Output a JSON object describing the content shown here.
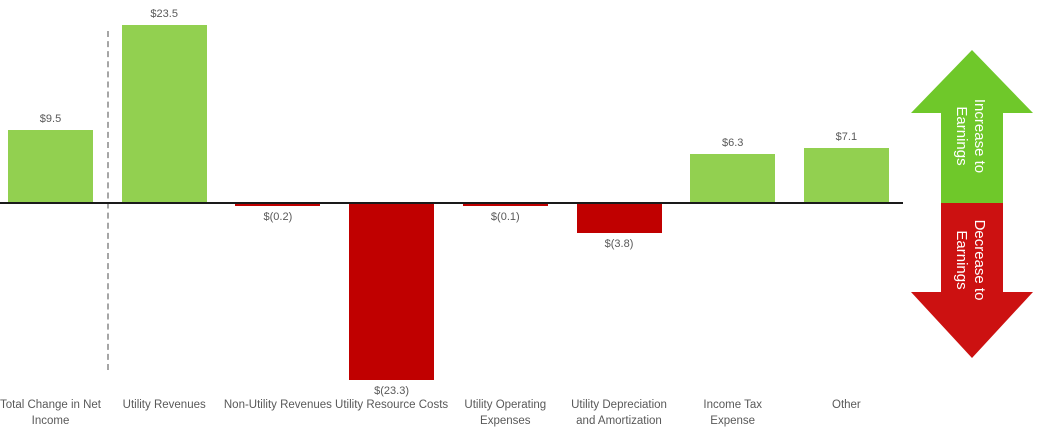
{
  "chart_data": {
    "type": "bar",
    "subtype": "waterfall-earnings-bridge",
    "title": "",
    "xlabel": "",
    "ylabel": "",
    "grid": false,
    "ylim": [
      -26,
      28
    ],
    "categories": [
      "Total Change in Net Income",
      "Utility Revenues",
      "Non-Utility Revenues",
      "Utility Resource Costs",
      "Utility Operating Expenses",
      "Utility Depreciation and Amortization",
      "Income Tax Expense",
      "Other"
    ],
    "categories_display": [
      "Total Change in Net\nIncome",
      "Utility Revenues",
      "Non-Utility Revenues",
      "Utility Resource Costs",
      "Utility Operating\nExpenses",
      "Utility Depreciation\nand Amortization",
      "Income Tax\nExpense",
      "Other"
    ],
    "values": [
      9.5,
      23.5,
      -0.2,
      -23.3,
      -0.1,
      -3.8,
      6.3,
      7.1
    ],
    "value_labels": [
      "$9.5",
      "$23.5",
      "$(0.2)",
      "$(23.3)",
      "$(0.1)",
      "$(3.8)",
      "$6.3",
      "$7.1"
    ],
    "positive_color": "#92D050",
    "negative_color": "#C00000",
    "axis_color": "#1A1A1A",
    "label_color": "#595959",
    "separator": {
      "after_category": "Total Change in Net Income",
      "style": "dashed",
      "color": "#A6A6A6"
    },
    "legend": {
      "position": "right",
      "increase": {
        "lines": [
          "Increase to",
          "Earnings"
        ],
        "color": "#6FC82A",
        "text_color": "#FFFFFF",
        "direction": "up"
      },
      "decrease": {
        "lines": [
          "Decrease to",
          "Earnings"
        ],
        "color": "#CC1111",
        "text_color": "#FFFFFF",
        "direction": "down"
      }
    }
  }
}
